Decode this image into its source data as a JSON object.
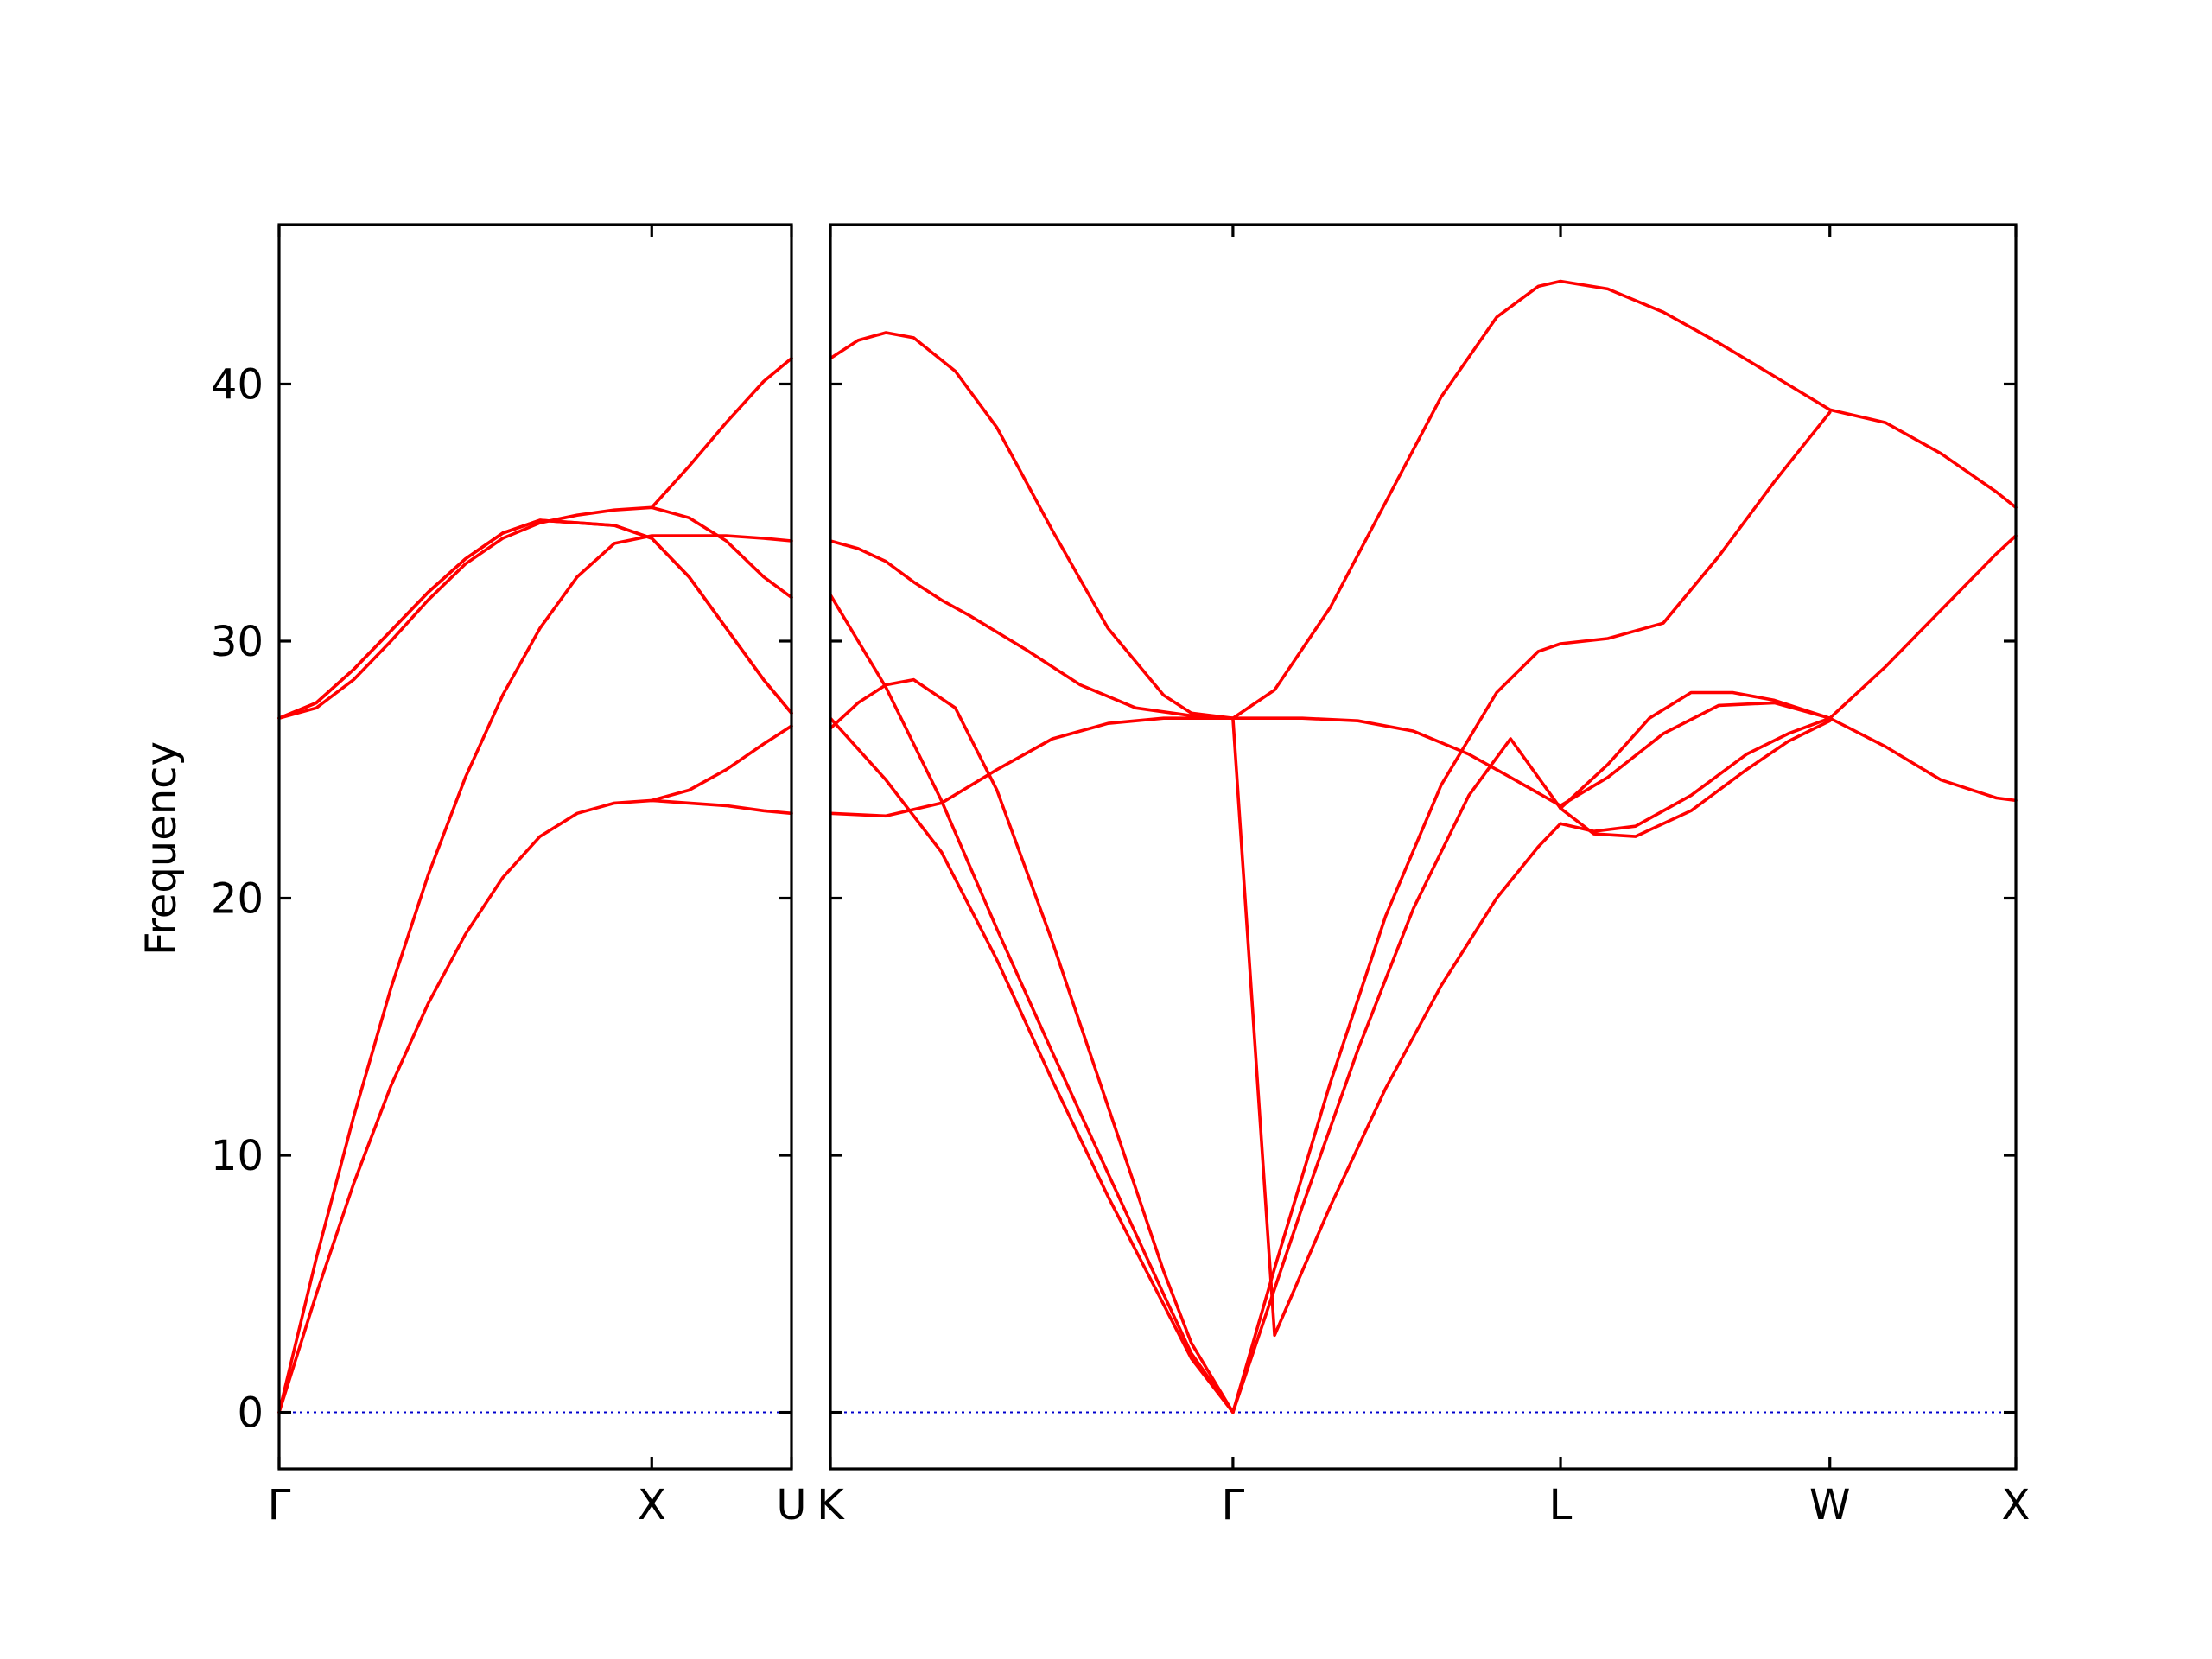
{
  "chart_data": {
    "type": "line",
    "ylabel": "Frequency",
    "ylim": [
      -2.2,
      46.2
    ],
    "yticks": [
      0,
      10,
      20,
      30,
      40
    ],
    "colors": {
      "band": "#ff0000",
      "zero_line": "#0000cc",
      "frame": "#000000"
    },
    "zero_line": true,
    "panels": [
      {
        "xlim": [
          0,
          1.375
        ],
        "ticks": [
          {
            "x": 0,
            "label": "Γ"
          },
          {
            "x": 1,
            "label": "X"
          },
          {
            "x": 1.375,
            "label": "U"
          }
        ],
        "series": [
          {
            "x": [
              0,
              0.1,
              0.2,
              0.3,
              0.4,
              0.5,
              0.6,
              0.7,
              0.8,
              0.9,
              1.0,
              1.1,
              1.2,
              1.3,
              1.375
            ],
            "values": [
              0,
              4.6,
              8.9,
              12.7,
              15.9,
              18.6,
              20.8,
              22.4,
              23.3,
              23.7,
              23.8,
              23.7,
              23.6,
              23.4,
              23.3
            ]
          },
          {
            "x": [
              0,
              0.1,
              0.2,
              0.3,
              0.4,
              0.5,
              0.6,
              0.7,
              0.8,
              0.9,
              1.0,
              1.1,
              1.2,
              1.3,
              1.375
            ],
            "values": [
              0,
              6.0,
              11.5,
              16.5,
              20.9,
              24.7,
              27.9,
              30.5,
              32.5,
              33.8,
              34.1,
              34.1,
              34.1,
              34.0,
              33.9
            ]
          },
          {
            "x": [
              0,
              0.1,
              0.2,
              0.3,
              0.4,
              0.5,
              0.6,
              0.7,
              0.8,
              0.9,
              1.0,
              1.1,
              1.2,
              1.3,
              1.375
            ],
            "values": [
              27.0,
              27.6,
              28.9,
              30.4,
              31.9,
              33.2,
              34.2,
              34.7,
              34.6,
              34.5,
              34.0,
              32.5,
              30.5,
              28.5,
              27.2
            ]
          },
          {
            "x": [
              0,
              0.1,
              0.2,
              0.3,
              0.4,
              0.5,
              0.6,
              0.7,
              0.8,
              0.9,
              1.0,
              1.1,
              1.2,
              1.3,
              1.375
            ],
            "values": [
              27.0,
              27.4,
              28.5,
              30.0,
              31.6,
              33.0,
              34.0,
              34.6,
              34.9,
              35.1,
              35.2,
              34.8,
              33.9,
              32.5,
              31.7
            ]
          },
          {
            "x": [
              0,
              0.1,
              0.2,
              0.3,
              0.4,
              0.5,
              0.6,
              0.7,
              0.8,
              0.9,
              1.0,
              1.1,
              1.2,
              1.3,
              1.375
            ],
            "values": [
              27.0,
              27.6,
              28.9,
              30.4,
              31.9,
              33.2,
              34.2,
              34.7,
              34.6,
              34.5,
              34.0,
              32.5,
              30.5,
              28.5,
              27.2
            ]
          },
          {
            "x": [
              1.0,
              1.1,
              1.2,
              1.3,
              1.375
            ],
            "values": [
              23.8,
              24.2,
              25.0,
              26.0,
              26.7
            ]
          },
          {
            "x": [
              1.0,
              1.1,
              1.2,
              1.3,
              1.375
            ],
            "values": [
              35.2,
              36.8,
              38.5,
              40.1,
              41.0
            ]
          }
        ]
      },
      {
        "xlim": [
          0,
          4.27
        ],
        "ticks": [
          {
            "x": 0,
            "label": "K"
          },
          {
            "x": 1.45,
            "label": "Γ"
          },
          {
            "x": 2.63,
            "label": "L"
          },
          {
            "x": 3.6,
            "label": "W"
          },
          {
            "x": 4.27,
            "label": "X"
          }
        ],
        "series": [
          {
            "x": [
              0,
              0.1,
              0.2,
              0.3,
              0.45,
              0.6,
              0.8,
              1.0,
              1.2,
              1.3,
              1.45,
              1.6,
              1.8,
              2.0,
              2.2,
              2.4,
              2.55,
              2.63,
              2.8,
              3.0,
              3.2,
              3.4,
              3.6,
              3.8,
              4.0,
              4.2,
              4.27
            ],
            "values": [
              41.0,
              41.7,
              42.0,
              41.8,
              40.5,
              38.3,
              34.3,
              30.5,
              27.9,
              27.2,
              27.0,
              28.1,
              31.3,
              35.4,
              39.5,
              42.6,
              43.8,
              44.0,
              43.7,
              42.8,
              41.6,
              40.3,
              39.0,
              38.5,
              37.3,
              35.8,
              35.2
            ]
          },
          {
            "x": [
              0,
              0.1,
              0.2,
              0.3,
              0.4,
              0.5,
              0.7,
              0.9,
              1.1,
              1.3,
              1.45,
              1.7,
              1.9,
              2.1,
              2.3,
              2.45,
              2.63,
              2.8,
              3.0,
              3.2,
              3.4,
              3.6,
              3.8,
              4.0,
              4.2,
              4.27
            ],
            "values": [
              33.9,
              33.6,
              33.1,
              32.3,
              31.6,
              31.0,
              29.7,
              28.3,
              27.4,
              27.1,
              27.0,
              27.0,
              26.9,
              26.5,
              25.6,
              24.7,
              23.6,
              24.7,
              26.4,
              27.5,
              27.6,
              27.0,
              25.9,
              24.6,
              23.9,
              23.8
            ]
          },
          {
            "x": [
              0,
              0.1,
              0.2,
              0.3,
              0.45,
              0.6,
              0.8,
              1.0,
              1.2,
              1.3,
              1.45,
              1.7,
              1.9,
              2.1,
              2.3,
              2.45,
              2.63,
              2.8,
              2.95,
              3.1,
              3.25,
              3.4,
              3.6
            ],
            "values": [
              26.6,
              27.6,
              28.3,
              28.5,
              27.4,
              24.2,
              18.3,
              11.9,
              5.5,
              2.7,
              0,
              8.0,
              14.1,
              19.6,
              24.0,
              26.2,
              23.5,
              25.2,
              27.0,
              28.0,
              28.0,
              27.7,
              27.0
            ]
          },
          {
            "x": [
              0,
              0.2,
              0.4,
              0.6,
              0.8,
              1.0,
              1.2,
              1.3,
              1.45,
              1.6,
              1.8,
              2.0,
              2.2,
              2.4,
              2.55,
              2.63,
              2.75,
              2.9,
              3.1,
              3.3,
              3.45,
              3.6,
              3.8,
              4.0,
              4.2,
              4.27
            ],
            "values": [
              23.3,
              23.2,
              23.7,
              25.0,
              26.2,
              26.8,
              27.0,
              27.0,
              27.0,
              3.0,
              8.0,
              12.6,
              16.6,
              20.0,
              22.0,
              22.9,
              22.6,
              22.8,
              24.0,
              25.6,
              26.4,
              27.0,
              29.0,
              31.2,
              33.4,
              34.1
            ]
          },
          {
            "x": [
              0,
              0.2,
              0.4,
              0.6,
              0.8,
              1.0,
              1.2,
              1.3,
              1.45
            ],
            "values": [
              31.8,
              28.2,
              23.8,
              18.8,
              14.0,
              9.3,
              4.6,
              2.3,
              0
            ]
          },
          {
            "x": [
              0,
              0.2,
              0.4,
              0.6,
              0.8,
              1.0,
              1.2,
              1.3,
              1.45
            ],
            "values": [
              27.0,
              24.6,
              21.8,
              17.6,
              12.9,
              8.4,
              4.2,
              2.1,
              0
            ]
          },
          {
            "x": [
              1.45,
              1.6,
              1.8,
              2.0,
              2.2,
              2.4,
              2.55,
              2.63,
              2.8,
              3.0,
              3.2,
              3.4,
              3.6
            ],
            "values": [
              0,
              5.6,
              12.8,
              19.3,
              24.4,
              28.0,
              29.6,
              29.9,
              30.1,
              30.7,
              33.3,
              36.2,
              38.9
            ]
          },
          {
            "x": [
              2.63,
              2.75,
              2.9,
              3.1,
              3.3,
              3.45,
              3.6
            ],
            "values": [
              23.5,
              22.5,
              22.4,
              23.4,
              25.0,
              26.1,
              26.9
            ]
          }
        ]
      }
    ]
  }
}
